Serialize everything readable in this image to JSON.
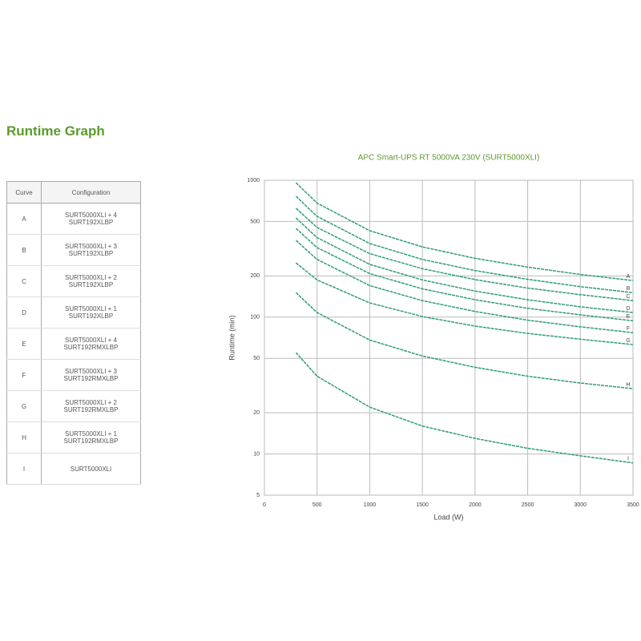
{
  "header": {
    "title": "Runtime Graph"
  },
  "table": {
    "columns": [
      "Curve",
      "Configuration"
    ],
    "rows": [
      [
        "A",
        "SURT5000XLI + 4 SURT192XLBP"
      ],
      [
        "B",
        "SURT5000XLI + 3 SURT192XLBP"
      ],
      [
        "C",
        "SURT5000XLI + 2 SURT192XLBP"
      ],
      [
        "D",
        "SURT5000XLI + 1 SURT192XLBP"
      ],
      [
        "E",
        "SURT5000XLI + 4 SURT192RMXLBP"
      ],
      [
        "F",
        "SURT5000XLI + 3 SURT192RMXLBP"
      ],
      [
        "G",
        "SURT5000XLI + 2 SURT192RMXLBP"
      ],
      [
        "H",
        "SURT5000XLI + 1 SURT192RMXLBP"
      ],
      [
        "I",
        "SURT5000XLI"
      ]
    ]
  },
  "chart_data": {
    "type": "line",
    "title": "APC Smart-UPS RT 5000VA 230V (SURT5000XLI)",
    "x_label": "Load (W)",
    "y_label": "Runtime (min)",
    "x": [
      300,
      500,
      1000,
      1500,
      2000,
      2500,
      3000,
      3500
    ],
    "series": [
      {
        "name": "A",
        "color": "#2e9e74",
        "values": [
          960,
          681,
          428,
          326,
          269,
          232,
          205,
          185
        ]
      },
      {
        "name": "B",
        "color": "#2e9e74",
        "values": [
          764,
          545,
          345,
          264,
          219,
          189,
          167,
          151
        ]
      },
      {
        "name": "C",
        "color": "#2e9e74",
        "values": [
          624,
          452,
          291,
          226,
          188,
          163,
          146,
          132
        ]
      },
      {
        "name": "D",
        "color": "#2e9e74",
        "values": [
          531,
          381,
          243,
          187,
          155,
          134,
          119,
          108
        ]
      },
      {
        "name": "E",
        "color": "#2e9e74",
        "values": [
          445,
          322,
          208,
          161,
          134,
          116,
          104,
          94
        ]
      },
      {
        "name": "F",
        "color": "#2e9e74",
        "values": [
          364,
          264,
          170,
          132,
          110,
          95,
          85,
          77
        ]
      },
      {
        "name": "G",
        "color": "#2e9e74",
        "values": [
          249,
          187,
          127,
          101,
          86,
          76,
          69,
          63
        ]
      },
      {
        "name": "H",
        "color": "#2e9e74",
        "values": [
          151,
          108,
          68,
          52,
          43,
          37,
          33,
          30
        ]
      },
      {
        "name": "I",
        "color": "#2e9e74",
        "values": [
          55,
          37,
          22,
          16,
          13,
          11,
          9.7,
          8.6
        ]
      }
    ],
    "xlim": [
      0,
      3500
    ],
    "xticks": [
      0,
      500,
      1000,
      1500,
      2000,
      2500,
      3000,
      3500
    ],
    "ylim": [
      5,
      1000
    ],
    "yticks": [
      5,
      10,
      20,
      50,
      100,
      200,
      500,
      1000
    ],
    "y_log": true,
    "grid": true
  }
}
